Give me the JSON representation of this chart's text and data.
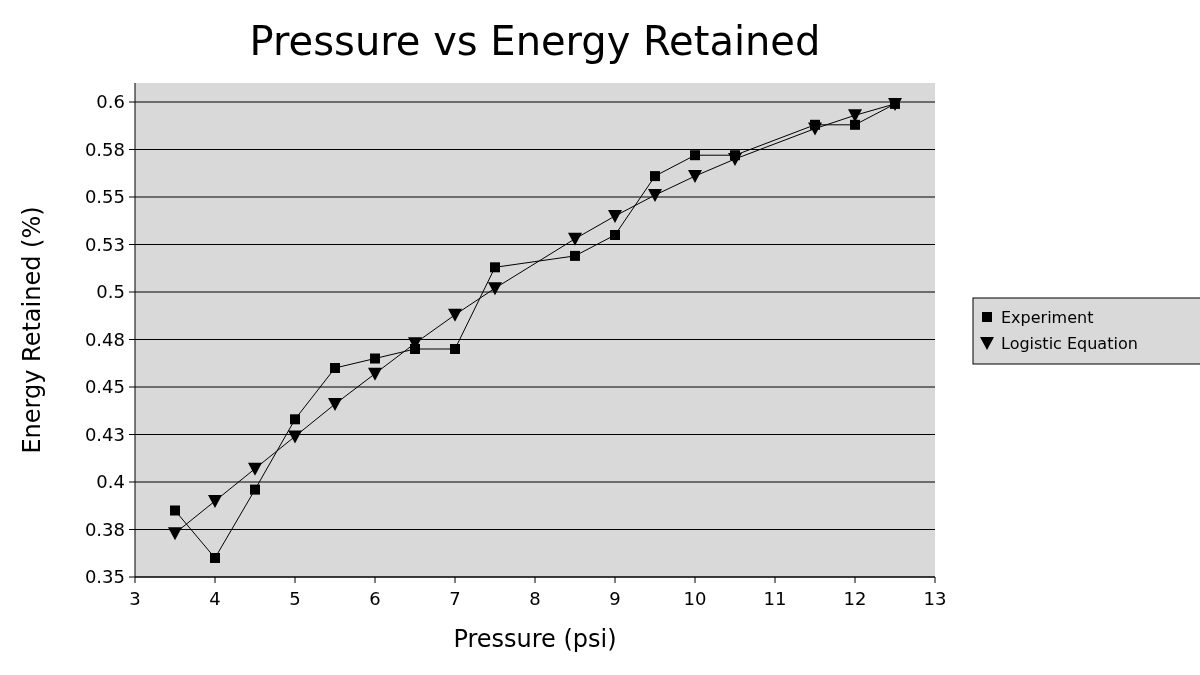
{
  "chart_data": {
    "type": "line",
    "title": "Pressure vs Energy Retained",
    "xlabel": "Pressure (psi)",
    "ylabel": "Energy Retained (%)",
    "x": [
      3.5,
      4,
      4.5,
      5,
      5.5,
      6,
      6.5,
      7,
      7.5,
      8.5,
      9,
      9.5,
      10,
      10.5,
      11.5,
      12,
      12.5
    ],
    "series": [
      {
        "name": "Experiment",
        "color": "#000000",
        "marker": "square",
        "values": [
          0.385,
          0.36,
          0.396,
          0.433,
          0.46,
          0.465,
          0.47,
          0.47,
          0.513,
          0.519,
          0.53,
          0.561,
          0.572,
          0.572,
          0.588,
          0.588,
          0.599
        ]
      },
      {
        "name": "Logistic Equation",
        "color": "#000000",
        "marker": "triangle",
        "values": [
          0.373,
          0.39,
          0.407,
          0.424,
          0.441,
          0.457,
          0.473,
          0.488,
          0.502,
          0.528,
          0.54,
          0.551,
          0.561,
          0.57,
          0.586,
          0.593,
          0.599
        ]
      }
    ],
    "xlim": [
      3,
      13
    ],
    "xticks": [
      3,
      4,
      5,
      6,
      7,
      8,
      9,
      10,
      11,
      12,
      13
    ],
    "ylim": [
      0.35,
      0.61
    ],
    "yticks": [
      0.35,
      {
        "value": 0.375,
        "label": "0.38"
      },
      0.4,
      {
        "value": 0.425,
        "label": "0.43"
      },
      0.45,
      {
        "value": 0.475,
        "label": "0.48"
      },
      0.5,
      {
        "value": 0.525,
        "label": "0.53"
      },
      0.55,
      {
        "value": 0.575,
        "label": "0.58"
      },
      0.6
    ],
    "grid": "y",
    "legend": "right",
    "line_style": "solid"
  }
}
